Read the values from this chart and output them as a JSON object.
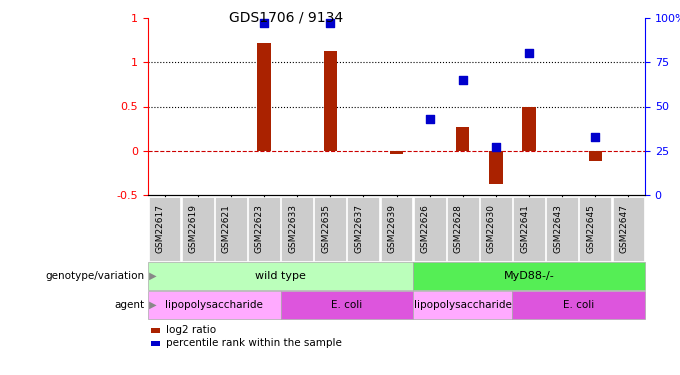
{
  "title": "GDS1706 / 9134",
  "samples": [
    "GSM22617",
    "GSM22619",
    "GSM22621",
    "GSM22623",
    "GSM22633",
    "GSM22635",
    "GSM22637",
    "GSM22639",
    "GSM22626",
    "GSM22628",
    "GSM22630",
    "GSM22641",
    "GSM22643",
    "GSM22645",
    "GSM22647"
  ],
  "log2_ratio": [
    0.0,
    0.0,
    0.0,
    1.22,
    0.0,
    1.13,
    0.0,
    -0.04,
    0.0,
    0.27,
    -0.38,
    0.5,
    0.0,
    -0.12,
    0.0
  ],
  "percentile_rank": [
    null,
    null,
    null,
    97,
    null,
    97,
    null,
    null,
    43,
    65,
    27,
    80,
    null,
    33,
    null
  ],
  "bar_color": "#aa2200",
  "dot_color": "#0000cc",
  "ylim": [
    -0.5,
    1.5
  ],
  "y2lim": [
    0,
    100
  ],
  "yticks": [
    -0.5,
    0.0,
    0.5,
    1.0,
    1.5
  ],
  "y2ticks": [
    0,
    25,
    50,
    75,
    100
  ],
  "hlines": [
    1.0,
    0.5,
    0.0
  ],
  "hline_styles": [
    "dotted",
    "dotted",
    "dashed"
  ],
  "hline_colors": [
    "black",
    "black",
    "#cc0000"
  ],
  "genotype_groups": [
    {
      "label": "wild type",
      "start": 0,
      "end": 7,
      "color": "#bbffbb"
    },
    {
      "label": "MyD88-/-",
      "start": 8,
      "end": 14,
      "color": "#55ee55"
    }
  ],
  "agent_groups": [
    {
      "label": "lipopolysaccharide",
      "start": 0,
      "end": 3,
      "color": "#ffaaff"
    },
    {
      "label": "E. coli",
      "start": 4,
      "end": 7,
      "color": "#dd55dd"
    },
    {
      "label": "lipopolysaccharide",
      "start": 8,
      "end": 10,
      "color": "#ffaaff"
    },
    {
      "label": "E. coli",
      "start": 11,
      "end": 14,
      "color": "#dd55dd"
    }
  ],
  "legend_items": [
    {
      "label": "log2 ratio",
      "color": "#aa2200"
    },
    {
      "label": "percentile rank within the sample",
      "color": "#0000cc"
    }
  ],
  "annot_row1_label": "genotype/variation",
  "annot_row2_label": "agent",
  "bar_width": 0.4,
  "dot_size": 40,
  "background_color": "#ffffff",
  "axis_bg_color": "#ffffff",
  "tick_label_bg": "#cccccc"
}
